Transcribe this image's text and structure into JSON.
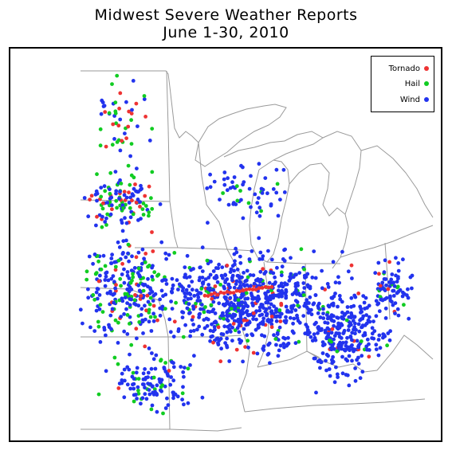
{
  "title": "Midwest Severe Weather Reports",
  "subtitle": "June 1-30, 2010",
  "colors": {
    "tornado": "#ee3333",
    "hail": "#11cc22",
    "wind": "#2233ee",
    "boundaries": "#9a9a9a"
  },
  "legend": {
    "items": [
      {
        "label": "Tornado",
        "color": "#ee3333"
      },
      {
        "label": "Hail",
        "color": "#11cc22"
      },
      {
        "label": "Wind",
        "color": "#2233ee"
      }
    ]
  }
}
